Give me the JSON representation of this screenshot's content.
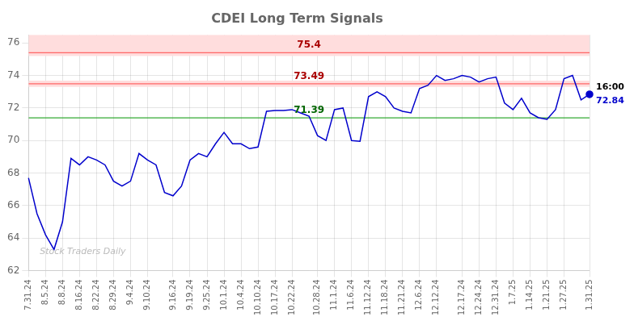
{
  "chart_data": {
    "type": "line",
    "title": "CDEI Long Term Signals",
    "categories": [
      "7.31.24",
      null,
      "8.5.24",
      null,
      "8.8.24",
      null,
      "8.16.24",
      null,
      "8.22.24",
      null,
      "8.29.24",
      null,
      "9.4.24",
      null,
      "9.10.24",
      null,
      null,
      "9.16.24",
      null,
      "9.19.24",
      null,
      "9.25.24",
      null,
      "10.1.24",
      null,
      "10.4.24",
      null,
      "10.10.24",
      null,
      "10.17.24",
      null,
      "10.22.24",
      null,
      null,
      "10.28.24",
      null,
      "11.1.24",
      null,
      "11.6.24",
      null,
      "11.12.24",
      null,
      "11.18.24",
      null,
      "11.21.24",
      null,
      "12.6.24",
      null,
      "12.12.24",
      null,
      null,
      "12.17.24",
      null,
      "12.24.24",
      null,
      "12.31.24",
      null,
      "1.7.25",
      null,
      "1.14.25",
      null,
      "1.21.25",
      null,
      "1.27.25",
      null,
      null,
      "1.31.25"
    ],
    "values": [
      67.7,
      65.5,
      64.2,
      63.3,
      65.0,
      68.9,
      68.5,
      69.0,
      68.8,
      68.5,
      67.5,
      67.2,
      67.5,
      69.2,
      68.8,
      68.5,
      66.8,
      66.6,
      67.2,
      68.8,
      69.2,
      69.0,
      69.8,
      70.5,
      69.8,
      69.8,
      69.5,
      69.6,
      71.8,
      71.85,
      71.85,
      71.9,
      71.7,
      71.5,
      70.3,
      70.0,
      71.9,
      72.0,
      70.0,
      69.95,
      72.7,
      73.0,
      72.7,
      72.0,
      71.8,
      71.7,
      73.2,
      73.4,
      74.0,
      73.7,
      73.8,
      74.0,
      73.9,
      73.6,
      73.8,
      73.9,
      72.3,
      71.9,
      72.6,
      71.7,
      71.4,
      71.3,
      71.9,
      73.8,
      74.0,
      72.5,
      72.84
    ],
    "color": "#0000cc",
    "marker": "circle",
    "ylim": [
      62,
      76.5
    ],
    "yticks": [
      62,
      64,
      66,
      68,
      70,
      72,
      74,
      76
    ],
    "grid": true,
    "bands": [
      {
        "from": 75.2,
        "to": 76.5,
        "color": "#ffdddd"
      },
      {
        "from": 73.3,
        "to": 73.68,
        "color": "#ffdddd"
      }
    ],
    "hlines": [
      {
        "value": 75.4,
        "color": "#ff6666",
        "label": "75.4",
        "label_color": "#aa0000"
      },
      {
        "value": 73.49,
        "color": "#ff6666",
        "label": "73.49",
        "label_color": "#aa0000"
      },
      {
        "value": 71.39,
        "color": "#33aa33",
        "label": "71.39",
        "label_color": "#006600"
      }
    ],
    "annotations": [
      {
        "text": "16:00",
        "color": "#000000"
      },
      {
        "text": "72.84",
        "value": 72.84,
        "color": "#0000cc"
      }
    ],
    "watermark": {
      "text": "Stock Traders Daily",
      "color": "#bbbbbb"
    }
  }
}
